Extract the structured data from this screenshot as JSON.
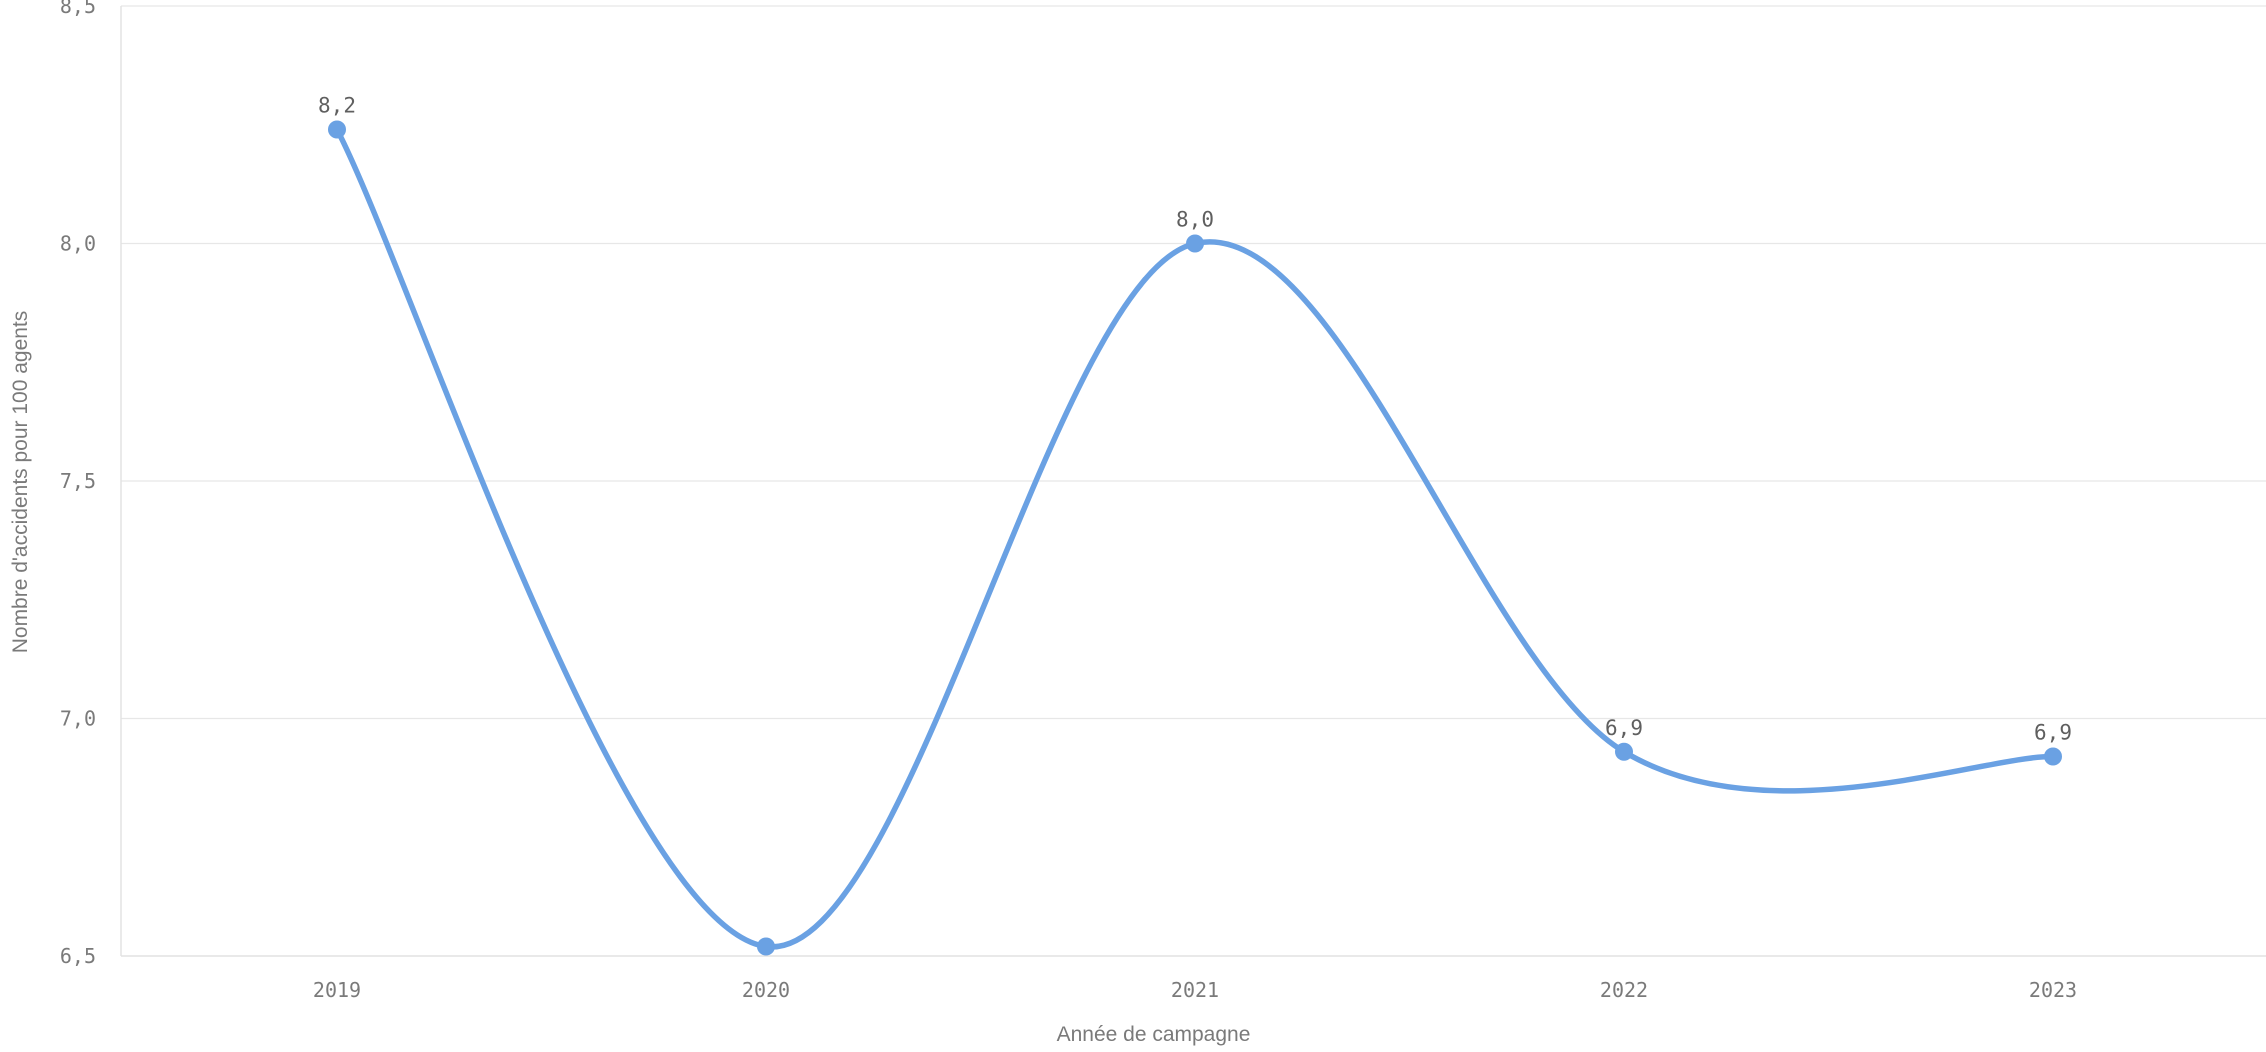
{
  "chart_data": {
    "type": "line",
    "xlabel": "Année de campagne",
    "ylabel": "Nombre d'accidents pour 100 agents",
    "categories": [
      "2019",
      "2020",
      "2021",
      "2022",
      "2023"
    ],
    "series": [
      {
        "values": [
          8.24,
          6.52,
          8.0,
          6.93,
          6.92
        ],
        "data_labels": [
          "8,2",
          "",
          "8,0",
          "6,9",
          "6,9"
        ],
        "color": "#6aa1e3"
      }
    ],
    "ylim": [
      6.5,
      8.5
    ],
    "yticks": [
      {
        "value": 6.5,
        "label": "6,5"
      },
      {
        "value": 7.0,
        "label": "7,0"
      },
      {
        "value": 7.5,
        "label": "7,5"
      },
      {
        "value": 8.0,
        "label": "8,0"
      },
      {
        "value": 8.5,
        "label": "8,5"
      }
    ],
    "grid": true,
    "smooth": true
  }
}
